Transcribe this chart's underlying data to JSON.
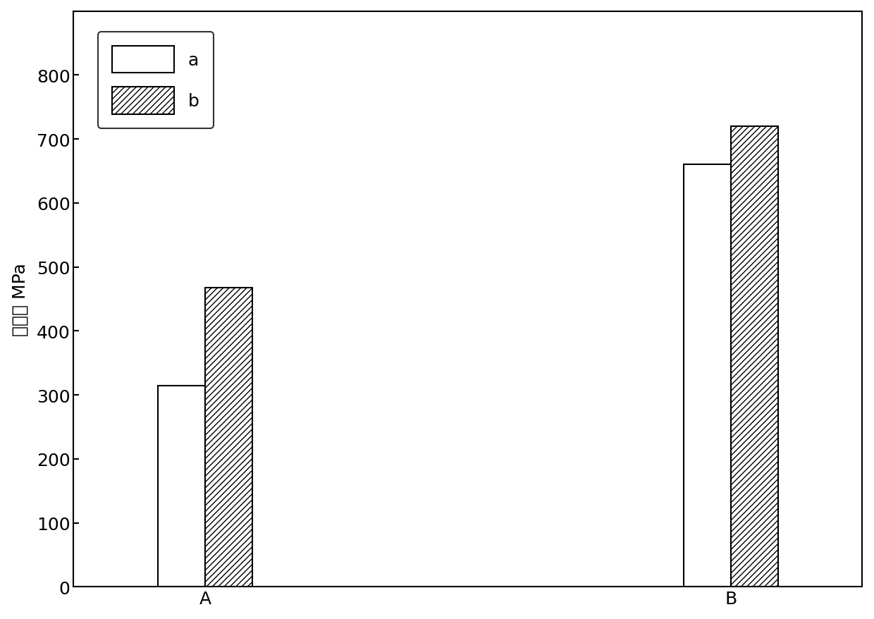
{
  "categories": [
    "A",
    "B"
  ],
  "series_a": [
    315,
    660
  ],
  "series_b": [
    468,
    720
  ],
  "ylabel": "强度， MPa",
  "ylim": [
    0,
    900
  ],
  "yticks": [
    0,
    100,
    200,
    300,
    400,
    500,
    600,
    700,
    800
  ],
  "legend_labels": [
    "a",
    "b"
  ],
  "bar_width": 0.18,
  "background_color": "#ffffff",
  "bar_color_a": "#ffffff",
  "bar_color_b": "#ffffff",
  "bar_edge_color": "#000000",
  "hatch_b": "////",
  "axis_fontsize": 18,
  "tick_fontsize": 18,
  "legend_fontsize": 18
}
